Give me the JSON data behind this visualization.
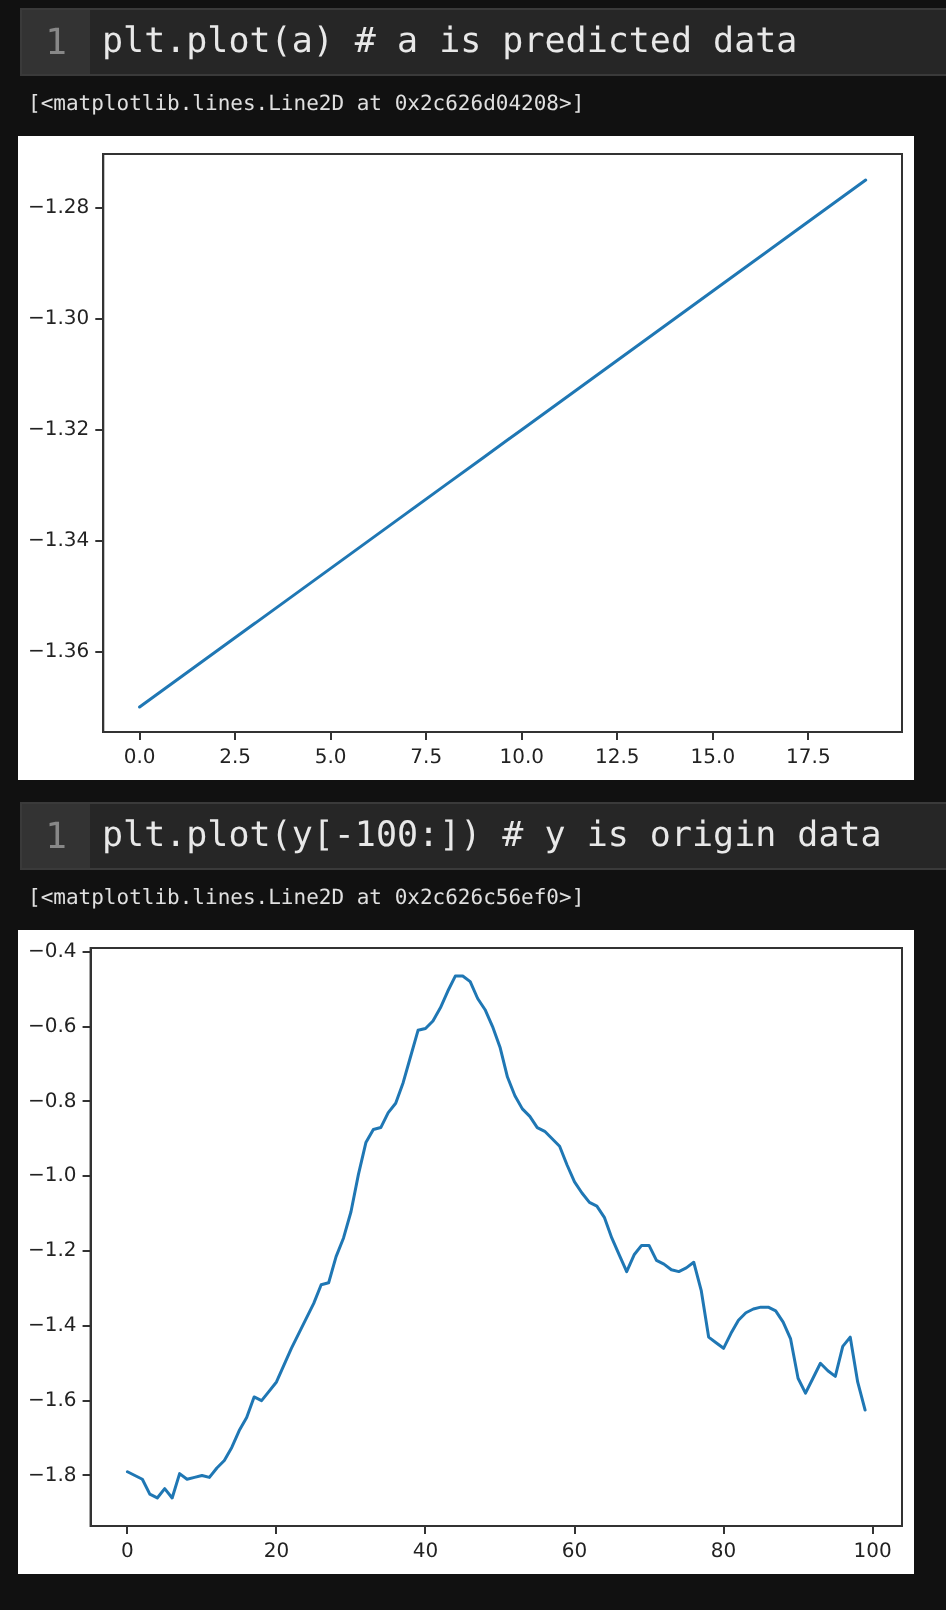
{
  "chart_data": [
    {
      "type": "line",
      "title": "plt.plot(a) # a is predicted data",
      "subtitle": "[<matplotlib.lines.Line2D at 0x2c626d04208>]",
      "annotations": [
        "1"
      ],
      "x": [
        0,
        1,
        2,
        3,
        4,
        5,
        6,
        7,
        8,
        9,
        10,
        11,
        12,
        13,
        14,
        15,
        16,
        17,
        18,
        19
      ],
      "series": [
        {
          "color": "#1f77b4",
          "values": [
            -1.37,
            -1.365,
            -1.36,
            -1.355,
            -1.35,
            -1.345,
            -1.34,
            -1.335,
            -1.33,
            -1.325,
            -1.32,
            -1.315,
            -1.31,
            -1.305,
            -1.3,
            -1.295,
            -1.29,
            -1.285,
            -1.28,
            -1.275
          ]
        }
      ],
      "xlim": [
        -0.95,
        19.95
      ],
      "ylim": [
        -1.3745,
        -1.2703
      ],
      "xticks": [
        {
          "value": 0,
          "label": "0.0"
        },
        {
          "value": 2.5,
          "label": "2.5"
        },
        {
          "value": 5,
          "label": "5.0"
        },
        {
          "value": 7.5,
          "label": "7.5"
        },
        {
          "value": 10,
          "label": "10.0"
        },
        {
          "value": 12.5,
          "label": "12.5"
        },
        {
          "value": 15,
          "label": "15.0"
        },
        {
          "value": 17.5,
          "label": "17.5"
        }
      ],
      "yticks": [
        {
          "value": -1.36,
          "label": "−1.36"
        },
        {
          "value": -1.34,
          "label": "−1.34"
        },
        {
          "value": -1.32,
          "label": "−1.32"
        },
        {
          "value": -1.3,
          "label": "−1.30"
        },
        {
          "value": -1.28,
          "label": "−1.28"
        }
      ],
      "marker": "none",
      "line_style": "solid",
      "grid": false
    },
    {
      "type": "line",
      "title": "plt.plot(y[-100:]) # y is origin data",
      "subtitle": "[<matplotlib.lines.Line2D at 0x2c626c56ef0>]",
      "annotations": [
        "1"
      ],
      "x": [
        0,
        1,
        2,
        3,
        4,
        5,
        6,
        7,
        8,
        9,
        10,
        11,
        12,
        13,
        14,
        15,
        16,
        17,
        18,
        19,
        20,
        21,
        22,
        23,
        24,
        25,
        26,
        27,
        28,
        29,
        30,
        31,
        32,
        33,
        34,
        35,
        36,
        37,
        38,
        39,
        40,
        41,
        42,
        43,
        44,
        45,
        46,
        47,
        48,
        49,
        50,
        51,
        52,
        53,
        54,
        55,
        56,
        57,
        58,
        59,
        60,
        61,
        62,
        63,
        64,
        65,
        66,
        67,
        68,
        69,
        70,
        71,
        72,
        73,
        74,
        75,
        76,
        77,
        78,
        79,
        80,
        81,
        82,
        83,
        84,
        85,
        86,
        87,
        88,
        89,
        90,
        91,
        92,
        93,
        94,
        95,
        96,
        97,
        98,
        99
      ],
      "series": [
        {
          "color": "#1f77b4",
          "values": [
            -1.79,
            -1.8,
            -1.81,
            -1.85,
            -1.86,
            -1.835,
            -1.86,
            -1.795,
            -1.81,
            -1.805,
            -1.8,
            -1.805,
            -1.78,
            -1.76,
            -1.725,
            -1.68,
            -1.645,
            -1.59,
            -1.6,
            -1.575,
            -1.55,
            -1.505,
            -1.46,
            -1.42,
            -1.38,
            -1.34,
            -1.29,
            -1.285,
            -1.215,
            -1.165,
            -1.095,
            -0.995,
            -0.91,
            -0.875,
            -0.87,
            -0.83,
            -0.805,
            -0.75,
            -0.68,
            -0.61,
            -0.605,
            -0.585,
            -0.55,
            -0.505,
            -0.465,
            -0.465,
            -0.48,
            -0.525,
            -0.555,
            -0.6,
            -0.655,
            -0.735,
            -0.785,
            -0.82,
            -0.84,
            -0.87,
            -0.88,
            -0.9,
            -0.92,
            -0.97,
            -1.015,
            -1.045,
            -1.07,
            -1.08,
            -1.11,
            -1.165,
            -1.21,
            -1.255,
            -1.21,
            -1.185,
            -1.185,
            -1.225,
            -1.235,
            -1.25,
            -1.255,
            -1.245,
            -1.23,
            -1.305,
            -1.43,
            -1.445,
            -1.46,
            -1.42,
            -1.385,
            -1.365,
            -1.355,
            -1.35,
            -1.35,
            -1.36,
            -1.39,
            -1.435,
            -1.54,
            -1.58,
            -1.54,
            -1.5,
            -1.52,
            -1.535,
            -1.455,
            -1.43,
            -1.55,
            -1.625
          ]
        }
      ],
      "xlim": [
        -4.95,
        103.95
      ],
      "ylim": [
        -1.935,
        -0.39
      ],
      "xticks": [
        0,
        20,
        40,
        60,
        80,
        100
      ],
      "yticks": [
        {
          "value": -1.8,
          "label": "−1.8"
        },
        {
          "value": -1.6,
          "label": "−1.6"
        },
        {
          "value": -1.4,
          "label": "−1.4"
        },
        {
          "value": -1.2,
          "label": "−1.2"
        },
        {
          "value": -1.0,
          "label": "−1.0"
        },
        {
          "value": -0.8,
          "label": "−0.8"
        },
        {
          "value": -0.6,
          "label": "−0.6"
        },
        {
          "value": -0.4,
          "label": "−0.4"
        }
      ],
      "marker": "none",
      "line_style": "solid",
      "grid": false
    }
  ]
}
